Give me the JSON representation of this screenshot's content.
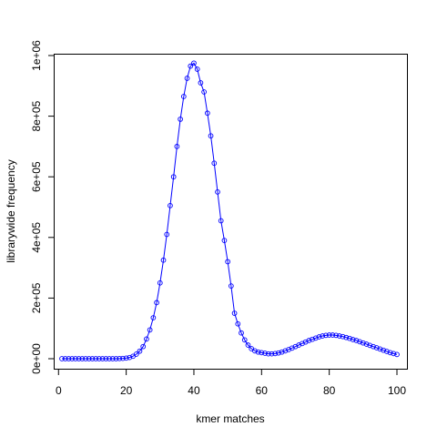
{
  "chart_data": {
    "type": "line",
    "xlabel": "kmer matches",
    "ylabel": "librarywide frequency",
    "xlim": [
      1,
      100
    ],
    "ylim": [
      0,
      1000000
    ],
    "x_ticks": [
      0,
      20,
      40,
      60,
      80,
      100
    ],
    "x_tick_labels": [
      "0",
      "20",
      "40",
      "60",
      "80",
      "100"
    ],
    "y_ticks": [
      0,
      200000,
      400000,
      600000,
      800000,
      1000000
    ],
    "y_tick_labels": [
      "0e+00",
      "2e+05",
      "4e+05",
      "6e+05",
      "8e+05",
      "1e+06"
    ],
    "grid": false,
    "legend": "none",
    "line_color": "#0000ff",
    "marker": "open-circle",
    "x": [
      1,
      2,
      3,
      4,
      5,
      6,
      7,
      8,
      9,
      10,
      11,
      12,
      13,
      14,
      15,
      16,
      17,
      18,
      19,
      20,
      21,
      22,
      23,
      24,
      25,
      26,
      27,
      28,
      29,
      30,
      31,
      32,
      33,
      34,
      35,
      36,
      37,
      38,
      39,
      40,
      41,
      42,
      43,
      44,
      45,
      46,
      47,
      48,
      49,
      50,
      51,
      52,
      53,
      54,
      55,
      56,
      57,
      58,
      59,
      60,
      61,
      62,
      63,
      64,
      65,
      66,
      67,
      68,
      69,
      70,
      71,
      72,
      73,
      74,
      75,
      76,
      77,
      78,
      79,
      80,
      81,
      82,
      83,
      84,
      85,
      86,
      87,
      88,
      89,
      90,
      91,
      92,
      93,
      94,
      95,
      96,
      97,
      98,
      99,
      100
    ],
    "values": [
      0,
      0,
      0,
      0,
      0,
      0,
      0,
      0,
      0,
      0,
      0,
      0,
      0,
      0,
      0,
      0,
      0,
      500,
      1000,
      2000,
      4000,
      8000,
      15000,
      25000,
      40000,
      65000,
      95000,
      135000,
      185000,
      250000,
      325000,
      410000,
      505000,
      600000,
      700000,
      790000,
      865000,
      925000,
      965000,
      975000,
      955000,
      910000,
      880000,
      810000,
      735000,
      645000,
      550000,
      455000,
      390000,
      320000,
      240000,
      150000,
      115000,
      85000,
      62000,
      45000,
      33000,
      26000,
      22000,
      20000,
      18000,
      16000,
      16000,
      17000,
      19000,
      22000,
      26000,
      30000,
      35000,
      40000,
      45000,
      50000,
      55000,
      60000,
      64000,
      68000,
      72000,
      75000,
      77000,
      78000,
      78000,
      77000,
      75000,
      73000,
      70000,
      67000,
      63000,
      60000,
      56000,
      52000,
      48000,
      44000,
      40000,
      36000,
      32000,
      28000,
      24000,
      20000,
      17000,
      14000
    ]
  }
}
